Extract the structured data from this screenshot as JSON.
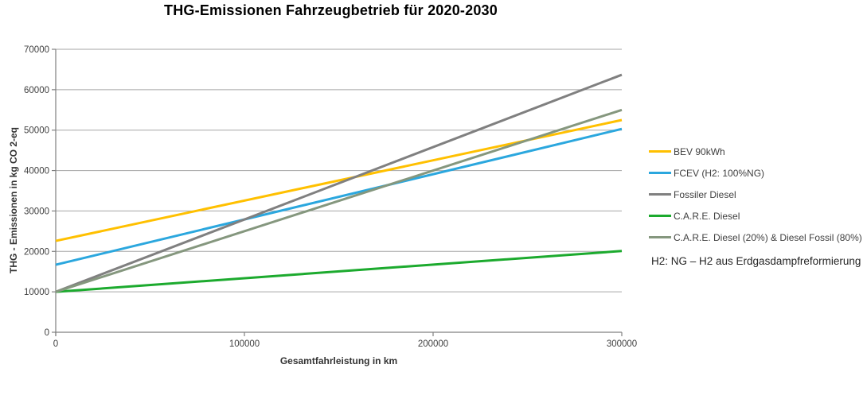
{
  "chart_data": {
    "type": "line",
    "title": "THG-Emissionen Fahrzeugbetrieb für 2020-2030",
    "xlabel": "Gesamtfahrleistung in km",
    "ylabel": "THG - Emissionen in kg CO 2-eq",
    "note": "H2: NG – H2 aus Erdgasdampfreformierung",
    "x": [
      0,
      300000
    ],
    "xlim": [
      0,
      300000
    ],
    "ylim": [
      0,
      70000
    ],
    "xticks": [
      0,
      100000,
      200000,
      300000
    ],
    "yticks": [
      0,
      10000,
      20000,
      30000,
      40000,
      50000,
      60000,
      70000
    ],
    "grid": "horizontal",
    "legend_position": "right",
    "series": [
      {
        "name": "BEV 90kWh",
        "color": "#FFC000",
        "values": [
          22600,
          52500
        ]
      },
      {
        "name": "FCEV (H2: 100%NG)",
        "color": "#2BA7DE",
        "values": [
          16700,
          50300
        ]
      },
      {
        "name": "Fossiler Diesel",
        "color": "#808080",
        "values": [
          10000,
          63700
        ]
      },
      {
        "name": "C.A.R.E. Diesel",
        "color": "#1CAA2E",
        "values": [
          10000,
          20100
        ]
      },
      {
        "name": "C.A.R.E. Diesel (20%) & Diesel Fossil (80%)",
        "color": "#85977E",
        "values": [
          10000,
          55000
        ]
      }
    ],
    "colors": {
      "axis": "#808080",
      "grid": "#A6A6A6",
      "tick_text": "#404040",
      "title_text": "#000000"
    }
  }
}
